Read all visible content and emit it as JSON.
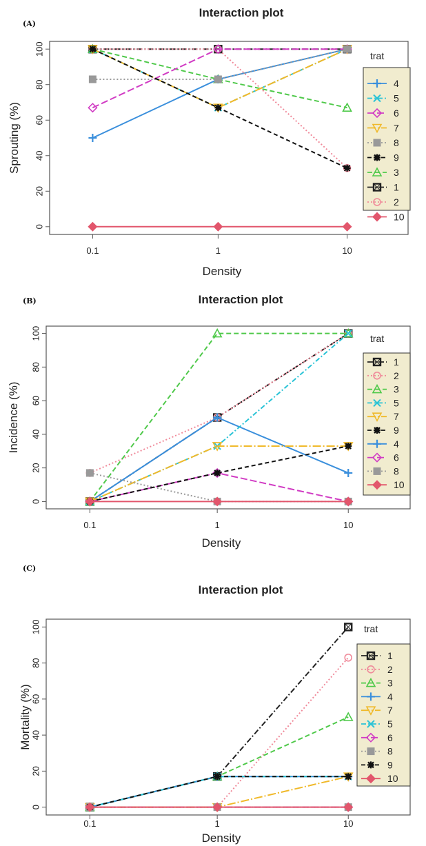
{
  "chart_data": [
    {
      "panel": "(A)",
      "type": "line",
      "title": "Interaction plot",
      "xlabel": "Density",
      "ylabel": "Sprouting (%)",
      "categories": [
        "0.1",
        "1",
        "10"
      ],
      "yticks": [
        0,
        20,
        40,
        60,
        80,
        100
      ],
      "ylim": [
        0,
        100
      ],
      "legend_title": "trat",
      "legend_order": [
        "4",
        "5",
        "6",
        "7",
        "8",
        "9",
        "3",
        "1",
        "2",
        "10"
      ],
      "series": [
        {
          "name": "1",
          "values": [
            100,
            100,
            100
          ]
        },
        {
          "name": "2",
          "values": [
            100,
            100,
            33
          ]
        },
        {
          "name": "3",
          "values": [
            100,
            83,
            67
          ]
        },
        {
          "name": "4",
          "values": [
            50,
            83,
            100
          ]
        },
        {
          "name": "5",
          "values": [
            100,
            67,
            100
          ]
        },
        {
          "name": "6",
          "values": [
            67,
            100,
            100
          ]
        },
        {
          "name": "7",
          "values": [
            100,
            67,
            100
          ]
        },
        {
          "name": "8",
          "values": [
            83,
            83,
            100
          ]
        },
        {
          "name": "9",
          "values": [
            100,
            67,
            33
          ]
        },
        {
          "name": "10",
          "values": [
            0,
            0,
            0
          ]
        }
      ]
    },
    {
      "panel": "(B)",
      "type": "line",
      "title": "Interaction plot",
      "xlabel": "Density",
      "ylabel": "Incidence (%)",
      "categories": [
        "0.1",
        "1",
        "10"
      ],
      "yticks": [
        0,
        20,
        40,
        60,
        80,
        100
      ],
      "ylim": [
        0,
        100
      ],
      "legend_title": "trat",
      "legend_order": [
        "1",
        "2",
        "3",
        "5",
        "7",
        "9",
        "4",
        "6",
        "8",
        "10"
      ],
      "series": [
        {
          "name": "1",
          "values": [
            0,
            50,
            100
          ]
        },
        {
          "name": "2",
          "values": [
            17,
            50,
            100
          ]
        },
        {
          "name": "3",
          "values": [
            0,
            100,
            100
          ]
        },
        {
          "name": "4",
          "values": [
            0,
            50,
            17
          ]
        },
        {
          "name": "5",
          "values": [
            0,
            33,
            100
          ]
        },
        {
          "name": "6",
          "values": [
            0,
            17,
            0
          ]
        },
        {
          "name": "7",
          "values": [
            0,
            33,
            33
          ]
        },
        {
          "name": "8",
          "values": [
            17,
            0,
            0
          ]
        },
        {
          "name": "9",
          "values": [
            0,
            17,
            33
          ]
        },
        {
          "name": "10",
          "values": [
            0,
            0,
            0
          ]
        }
      ]
    },
    {
      "panel": "(C)",
      "type": "line",
      "title": "Interaction plot",
      "xlabel": "Density",
      "ylabel": "Mortality (%)",
      "categories": [
        "0.1",
        "1",
        "10"
      ],
      "yticks": [
        0,
        20,
        40,
        60,
        80,
        100
      ],
      "ylim": [
        0,
        100
      ],
      "legend_title": "trat",
      "legend_order": [
        "1",
        "2",
        "3",
        "4",
        "7",
        "5",
        "6",
        "8",
        "9",
        "10"
      ],
      "series": [
        {
          "name": "1",
          "values": [
            0,
            17,
            100
          ]
        },
        {
          "name": "2",
          "values": [
            0,
            0,
            83
          ]
        },
        {
          "name": "3",
          "values": [
            0,
            17,
            50
          ]
        },
        {
          "name": "4",
          "values": [
            0,
            17,
            17
          ]
        },
        {
          "name": "5",
          "values": [
            0,
            17,
            17
          ]
        },
        {
          "name": "6",
          "values": [
            0,
            0,
            0
          ]
        },
        {
          "name": "7",
          "values": [
            0,
            0,
            17
          ]
        },
        {
          "name": "8",
          "values": [
            0,
            0,
            0
          ]
        },
        {
          "name": "9",
          "values": [
            0,
            17,
            17
          ]
        },
        {
          "name": "10",
          "values": [
            0,
            0,
            0
          ]
        }
      ]
    }
  ],
  "style": {
    "series": {
      "1": {
        "color": "#222222",
        "dash": "8,3,2,3",
        "marker": "square-x"
      },
      "2": {
        "color": "#f08a9a",
        "dash": "2,3",
        "marker": "circle"
      },
      "3": {
        "color": "#4fc94a",
        "dash": "7,4",
        "marker": "triangle"
      },
      "4": {
        "color": "#3a8fdc",
        "dash": "",
        "marker": "plus"
      },
      "5": {
        "color": "#29c3d6",
        "dash": "7,3,2,3",
        "marker": "x"
      },
      "6": {
        "color": "#d13cc4",
        "dash": "10,4",
        "marker": "diamond"
      },
      "7": {
        "color": "#f0b92a",
        "dash": "12,3,2,3",
        "marker": "triangle-down"
      },
      "8": {
        "color": "#999999",
        "dash": "2,3",
        "marker": "square-cross"
      },
      "9": {
        "color": "#111111",
        "dash": "6,4",
        "marker": "asterisk"
      },
      "10": {
        "color": "#e2566c",
        "dash": "",
        "marker": "diamond-plus"
      }
    },
    "legend_bg": "#f1eccf"
  }
}
